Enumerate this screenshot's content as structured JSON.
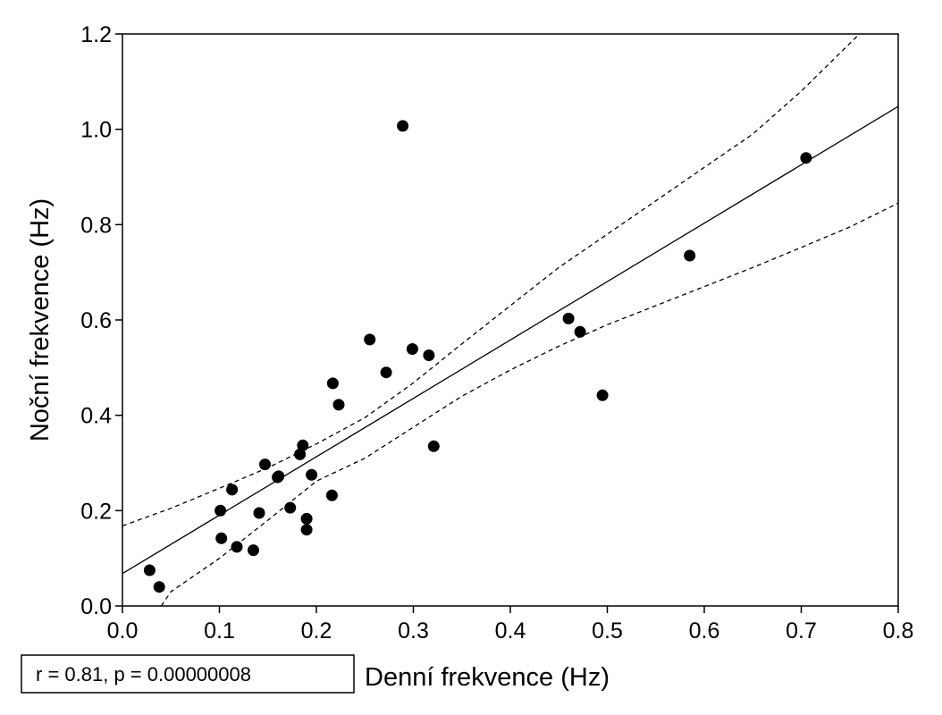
{
  "chart_data": {
    "type": "scatter",
    "xlabel": "Denní frekvence (Hz)",
    "ylabel": "Noční frekvence (Hz)",
    "xlim": [
      0.0,
      0.8
    ],
    "ylim": [
      0.0,
      1.2
    ],
    "x_ticks": [
      "0.0",
      "0.1",
      "0.2",
      "0.3",
      "0.4",
      "0.5",
      "0.6",
      "0.7",
      "0.8"
    ],
    "y_ticks": [
      "0.0",
      "0.2",
      "0.4",
      "0.6",
      "0.8",
      "1.0",
      "1.2"
    ],
    "grid": false,
    "stats_label": "r = 0.81, p = 0.00000008",
    "points": [
      {
        "x": 0.028,
        "y": 0.075
      },
      {
        "x": 0.038,
        "y": 0.04
      },
      {
        "x": 0.101,
        "y": 0.2
      },
      {
        "x": 0.102,
        "y": 0.142
      },
      {
        "x": 0.113,
        "y": 0.244
      },
      {
        "x": 0.118,
        "y": 0.124
      },
      {
        "x": 0.135,
        "y": 0.117
      },
      {
        "x": 0.141,
        "y": 0.195
      },
      {
        "x": 0.147,
        "y": 0.297
      },
      {
        "x": 0.16,
        "y": 0.27
      },
      {
        "x": 0.161,
        "y": 0.272
      },
      {
        "x": 0.173,
        "y": 0.206
      },
      {
        "x": 0.183,
        "y": 0.318
      },
      {
        "x": 0.186,
        "y": 0.337
      },
      {
        "x": 0.19,
        "y": 0.183
      },
      {
        "x": 0.19,
        "y": 0.16
      },
      {
        "x": 0.195,
        "y": 0.275
      },
      {
        "x": 0.216,
        "y": 0.232
      },
      {
        "x": 0.217,
        "y": 0.467
      },
      {
        "x": 0.223,
        "y": 0.422
      },
      {
        "x": 0.255,
        "y": 0.559
      },
      {
        "x": 0.272,
        "y": 0.49
      },
      {
        "x": 0.289,
        "y": 1.007
      },
      {
        "x": 0.299,
        "y": 0.539
      },
      {
        "x": 0.316,
        "y": 0.526
      },
      {
        "x": 0.321,
        "y": 0.335
      },
      {
        "x": 0.46,
        "y": 0.603
      },
      {
        "x": 0.472,
        "y": 0.575
      },
      {
        "x": 0.495,
        "y": 0.442
      },
      {
        "x": 0.585,
        "y": 0.735
      },
      {
        "x": 0.705,
        "y": 0.94
      }
    ],
    "regression_line": {
      "intercept": 0.068,
      "slope": 1.225
    },
    "confidence_upper": [
      {
        "x": 0.0,
        "y": 0.168
      },
      {
        "x": 0.05,
        "y": 0.205
      },
      {
        "x": 0.1,
        "y": 0.247
      },
      {
        "x": 0.15,
        "y": 0.29
      },
      {
        "x": 0.2,
        "y": 0.34
      },
      {
        "x": 0.25,
        "y": 0.395
      },
      {
        "x": 0.3,
        "y": 0.468
      },
      {
        "x": 0.35,
        "y": 0.55
      },
      {
        "x": 0.4,
        "y": 0.63
      },
      {
        "x": 0.45,
        "y": 0.71
      },
      {
        "x": 0.5,
        "y": 0.78
      },
      {
        "x": 0.55,
        "y": 0.85
      },
      {
        "x": 0.6,
        "y": 0.92
      },
      {
        "x": 0.65,
        "y": 0.99
      },
      {
        "x": 0.7,
        "y": 1.08
      },
      {
        "x": 0.75,
        "y": 1.18
      },
      {
        "x": 0.76,
        "y": 1.2
      }
    ],
    "confidence_lower": [
      {
        "x": 0.04,
        "y": 0.0
      },
      {
        "x": 0.05,
        "y": 0.03
      },
      {
        "x": 0.1,
        "y": 0.1
      },
      {
        "x": 0.15,
        "y": 0.18
      },
      {
        "x": 0.2,
        "y": 0.262
      },
      {
        "x": 0.25,
        "y": 0.31
      },
      {
        "x": 0.3,
        "y": 0.375
      },
      {
        "x": 0.35,
        "y": 0.44
      },
      {
        "x": 0.4,
        "y": 0.495
      },
      {
        "x": 0.45,
        "y": 0.545
      },
      {
        "x": 0.5,
        "y": 0.59
      },
      {
        "x": 0.55,
        "y": 0.63
      },
      {
        "x": 0.6,
        "y": 0.67
      },
      {
        "x": 0.65,
        "y": 0.71
      },
      {
        "x": 0.7,
        "y": 0.752
      },
      {
        "x": 0.75,
        "y": 0.795
      },
      {
        "x": 0.8,
        "y": 0.845
      }
    ],
    "colors": {
      "points": "#000000",
      "lines": "#000000",
      "background": "#ffffff"
    }
  }
}
